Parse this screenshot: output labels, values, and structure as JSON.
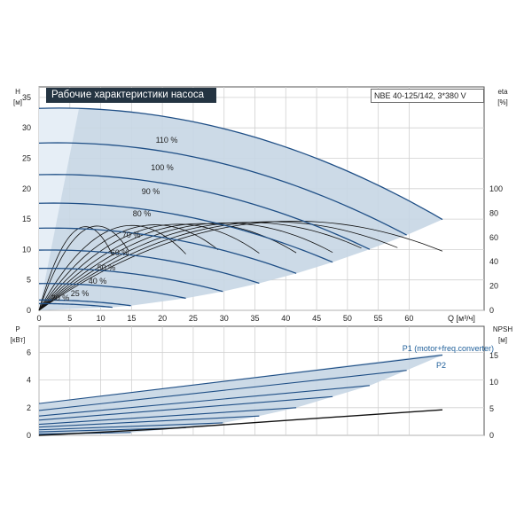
{
  "chart_data": [
    {
      "type": "line",
      "title": "Рабочие характеристики насоса",
      "model": "NBE 40-125/142, 3*380 V",
      "ylabel": "H",
      "yunit": "[м]",
      "y2label": "eta",
      "y2unit": "[%]",
      "xlabel": "Q [м³/ч]",
      "xlim": [
        0,
        70
      ],
      "ylim": [
        0,
        38
      ],
      "y2lim": [
        0,
        130
      ],
      "x_ticks": [
        0,
        5,
        10,
        15,
        20,
        25,
        30,
        35,
        40,
        45,
        50,
        55,
        60
      ],
      "y_ticks": [
        0,
        5,
        10,
        15,
        20,
        25,
        30,
        35
      ],
      "y2_ticks": [
        0,
        20,
        40,
        60,
        80,
        100
      ],
      "grid": true,
      "head_curves": [
        {
          "speed_label": "110 %",
          "q_max": 65.4,
          "shutoff_head": 33.2
        },
        {
          "speed_label": "100 %",
          "q_max": 59.6,
          "shutoff_head": 27.5
        },
        {
          "speed_label": "90 %",
          "q_max": 53.6,
          "shutoff_head": 22.3
        },
        {
          "speed_label": "80 %",
          "q_max": 47.6,
          "shutoff_head": 17.6
        },
        {
          "speed_label": "70 %",
          "q_max": 41.7,
          "shutoff_head": 13.5
        },
        {
          "speed_label": "60 %",
          "q_max": 35.7,
          "shutoff_head": 9.9
        },
        {
          "speed_label": "50 %",
          "q_max": 29.8,
          "shutoff_head": 6.9
        },
        {
          "speed_label": "40 %",
          "q_max": 23.8,
          "shutoff_head": 4.4
        },
        {
          "speed_label": "25 %",
          "q_max": 14.9,
          "shutoff_head": 1.7
        },
        {
          "speed_label": "20 %",
          "q_max": 11.9,
          "shutoff_head": 1.1
        }
      ],
      "efficiency_curves_note": "Black efficiency curves rise from 0 to about 70–72 % near Q 40–50 м³/ч (read on right eta axis)."
    },
    {
      "type": "line",
      "ylabel": "P",
      "yunit": "[кВт]",
      "y2label": "NPSH",
      "y2unit": "[м]",
      "xlim": [
        0,
        70
      ],
      "ylim": [
        0,
        6.5
      ],
      "y2lim": [
        0,
        16.2
      ],
      "y_ticks": [
        0,
        2,
        4,
        6
      ],
      "y2_ticks": [
        0,
        5,
        10,
        15
      ],
      "grid": true,
      "series_labels": [
        "P1 (motor+freq.converter)",
        "P2"
      ],
      "power_curves": [
        {
          "q_max": 65.4,
          "p_start": 2.3,
          "p_end": 5.8
        },
        {
          "q_max": 59.6,
          "p_start": 1.8,
          "p_end": 4.7
        },
        {
          "q_max": 53.6,
          "p_start": 1.4,
          "p_end": 3.6
        },
        {
          "q_max": 47.6,
          "p_start": 1.1,
          "p_end": 2.8
        },
        {
          "q_max": 41.7,
          "p_start": 0.8,
          "p_end": 2.0
        },
        {
          "q_max": 35.7,
          "p_start": 0.6,
          "p_end": 1.4
        },
        {
          "q_max": 29.8,
          "p_start": 0.4,
          "p_end": 0.9
        },
        {
          "q_max": 23.8,
          "p_start": 0.25,
          "p_end": 0.55
        },
        {
          "q_max": 14.9,
          "p_start": 0.1,
          "p_end": 0.2
        }
      ],
      "npsh_curve": {
        "q": [
          0,
          10,
          20,
          30,
          40,
          50,
          65.4
        ],
        "npsh": [
          0,
          0.6,
          1.2,
          2.0,
          2.8,
          3.6,
          4.8
        ]
      }
    }
  ]
}
